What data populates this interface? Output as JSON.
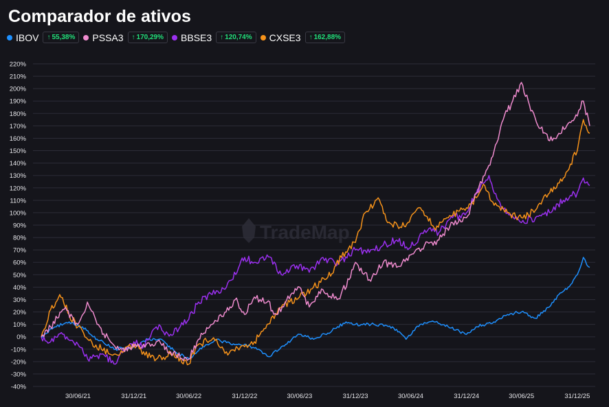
{
  "title": "Comparador de ativos",
  "legend": [
    {
      "name": "IBOV",
      "color": "#1e90ff",
      "change": "55,38%"
    },
    {
      "name": "PSSA3",
      "color": "#f08ccf",
      "change": "170,29%"
    },
    {
      "name": "BBSE3",
      "color": "#9b30f0",
      "change": "120,74%"
    },
    {
      "name": "CXSE3",
      "color": "#f7931a",
      "change": "162,88%"
    }
  ],
  "watermark": "TradeMap",
  "chart_data": {
    "type": "line",
    "title": "Comparador de ativos",
    "ylim": [
      -40,
      220
    ],
    "yticks": [
      "220%",
      "210%",
      "200%",
      "190%",
      "180%",
      "170%",
      "160%",
      "150%",
      "140%",
      "130%",
      "120%",
      "110%",
      "100%",
      "90%",
      "80%",
      "70%",
      "60%",
      "50%",
      "40%",
      "30%",
      "20%",
      "10%",
      "0%",
      "-10%",
      "-20%",
      "-30%",
      "-40%"
    ],
    "xticks": [
      "30/06/21",
      "31/12/21",
      "30/06/22",
      "31/12/22",
      "30/06/23",
      "31/12/23",
      "30/06/24",
      "31/12/24",
      "30/06/25",
      "31/12/25"
    ],
    "x_range": [
      "2021-03-01",
      "2026-02-10"
    ],
    "grid": true,
    "series": [
      {
        "name": "IBOV",
        "color": "#1e90ff",
        "points": [
          [
            "2021-03-01",
            0
          ],
          [
            "2021-04-15",
            8
          ],
          [
            "2021-06-01",
            12
          ],
          [
            "2021-07-15",
            8
          ],
          [
            "2021-09-01",
            -2
          ],
          [
            "2021-11-01",
            -10
          ],
          [
            "2021-12-31",
            -8
          ],
          [
            "2022-02-15",
            -2
          ],
          [
            "2022-04-01",
            -2
          ],
          [
            "2022-05-15",
            -12
          ],
          [
            "2022-07-01",
            -18
          ],
          [
            "2022-08-15",
            -8
          ],
          [
            "2022-10-01",
            -2
          ],
          [
            "2022-11-15",
            -6
          ],
          [
            "2022-12-31",
            -6
          ],
          [
            "2023-02-15",
            -10
          ],
          [
            "2023-03-20",
            -16
          ],
          [
            "2023-05-01",
            -8
          ],
          [
            "2023-06-30",
            2
          ],
          [
            "2023-08-15",
            -2
          ],
          [
            "2023-10-15",
            5
          ],
          [
            "2023-11-30",
            12
          ],
          [
            "2023-12-31",
            10
          ],
          [
            "2024-03-01",
            10
          ],
          [
            "2024-05-01",
            8
          ],
          [
            "2024-06-15",
            -2
          ],
          [
            "2024-07-31",
            10
          ],
          [
            "2024-09-15",
            12
          ],
          [
            "2024-11-01",
            8
          ],
          [
            "2024-12-31",
            2
          ],
          [
            "2025-01-31",
            8
          ],
          [
            "2025-03-31",
            12
          ],
          [
            "2025-05-15",
            18
          ],
          [
            "2025-06-30",
            20
          ],
          [
            "2025-08-15",
            15
          ],
          [
            "2025-09-30",
            24
          ],
          [
            "2025-10-31",
            34
          ],
          [
            "2025-12-01",
            40
          ],
          [
            "2025-12-31",
            50
          ],
          [
            "2026-01-20",
            64
          ],
          [
            "2026-01-31",
            58
          ],
          [
            "2026-02-10",
            56
          ]
        ]
      },
      {
        "name": "PSSA3",
        "color": "#f08ccf",
        "points": [
          [
            "2021-03-01",
            0
          ],
          [
            "2021-04-01",
            8
          ],
          [
            "2021-05-15",
            22
          ],
          [
            "2021-06-30",
            10
          ],
          [
            "2021-07-31",
            28
          ],
          [
            "2021-09-01",
            10
          ],
          [
            "2021-10-15",
            -4
          ],
          [
            "2021-12-01",
            -12
          ],
          [
            "2021-12-31",
            -8
          ],
          [
            "2022-02-01",
            -6
          ],
          [
            "2022-03-15",
            -4
          ],
          [
            "2022-05-01",
            -12
          ],
          [
            "2022-06-30",
            -18
          ],
          [
            "2022-08-01",
            -2
          ],
          [
            "2022-09-15",
            10
          ],
          [
            "2022-10-31",
            20
          ],
          [
            "2022-11-30",
            30
          ],
          [
            "2022-12-31",
            18
          ],
          [
            "2023-02-01",
            32
          ],
          [
            "2023-03-15",
            28
          ],
          [
            "2023-04-15",
            18
          ],
          [
            "2023-06-01",
            34
          ],
          [
            "2023-06-30",
            40
          ],
          [
            "2023-08-01",
            24
          ],
          [
            "2023-09-15",
            38
          ],
          [
            "2023-11-01",
            30
          ],
          [
            "2023-12-15",
            48
          ],
          [
            "2023-12-31",
            60
          ],
          [
            "2024-02-15",
            46
          ],
          [
            "2024-04-01",
            60
          ],
          [
            "2024-05-15",
            56
          ],
          [
            "2024-06-30",
            66
          ],
          [
            "2024-08-15",
            74
          ],
          [
            "2024-10-01",
            78
          ],
          [
            "2024-11-15",
            92
          ],
          [
            "2024-12-31",
            96
          ],
          [
            "2025-02-01",
            116
          ],
          [
            "2025-03-01",
            130
          ],
          [
            "2025-04-01",
            150
          ],
          [
            "2025-05-01",
            175
          ],
          [
            "2025-06-01",
            190
          ],
          [
            "2025-06-30",
            205
          ],
          [
            "2025-07-31",
            182
          ],
          [
            "2025-09-01",
            168
          ],
          [
            "2025-10-01",
            158
          ],
          [
            "2025-10-31",
            164
          ],
          [
            "2025-12-01",
            172
          ],
          [
            "2025-12-31",
            178
          ],
          [
            "2026-01-20",
            190
          ],
          [
            "2026-02-10",
            170
          ]
        ]
      },
      {
        "name": "BBSE3",
        "color": "#9b30f0",
        "points": [
          [
            "2021-03-01",
            0
          ],
          [
            "2021-04-01",
            -4
          ],
          [
            "2021-05-15",
            2
          ],
          [
            "2021-06-30",
            -6
          ],
          [
            "2021-08-01",
            -18
          ],
          [
            "2021-09-15",
            -14
          ],
          [
            "2021-10-31",
            -22
          ],
          [
            "2021-12-01",
            -10
          ],
          [
            "2021-12-31",
            -4
          ],
          [
            "2022-02-01",
            -8
          ],
          [
            "2022-03-15",
            8
          ],
          [
            "2022-05-01",
            2
          ],
          [
            "2022-06-30",
            14
          ],
          [
            "2022-08-01",
            28
          ],
          [
            "2022-09-15",
            34
          ],
          [
            "2022-11-01",
            40
          ],
          [
            "2022-12-15",
            58
          ],
          [
            "2022-12-31",
            64
          ],
          [
            "2023-02-01",
            60
          ],
          [
            "2023-03-15",
            66
          ],
          [
            "2023-05-01",
            50
          ],
          [
            "2023-06-30",
            58
          ],
          [
            "2023-08-01",
            52
          ],
          [
            "2023-09-15",
            64
          ],
          [
            "2023-11-01",
            58
          ],
          [
            "2023-12-31",
            70
          ],
          [
            "2024-02-15",
            68
          ],
          [
            "2024-04-01",
            74
          ],
          [
            "2024-05-15",
            78
          ],
          [
            "2024-06-30",
            72
          ],
          [
            "2024-08-15",
            86
          ],
          [
            "2024-10-01",
            84
          ],
          [
            "2024-11-15",
            96
          ],
          [
            "2024-12-31",
            100
          ],
          [
            "2025-02-01",
            115
          ],
          [
            "2025-03-15",
            130
          ],
          [
            "2025-04-15",
            110
          ],
          [
            "2025-05-15",
            100
          ],
          [
            "2025-06-30",
            92
          ],
          [
            "2025-08-15",
            96
          ],
          [
            "2025-10-01",
            100
          ],
          [
            "2025-11-15",
            110
          ],
          [
            "2025-12-31",
            116
          ],
          [
            "2026-01-20",
            128
          ],
          [
            "2026-02-10",
            122
          ]
        ]
      },
      {
        "name": "CXSE3",
        "color": "#f7931a",
        "points": [
          [
            "2021-03-01",
            0
          ],
          [
            "2021-04-01",
            22
          ],
          [
            "2021-05-01",
            34
          ],
          [
            "2021-06-01",
            18
          ],
          [
            "2021-06-30",
            8
          ],
          [
            "2021-08-01",
            -2
          ],
          [
            "2021-09-15",
            -10
          ],
          [
            "2021-11-01",
            -14
          ],
          [
            "2021-12-31",
            -6
          ],
          [
            "2022-02-01",
            -12
          ],
          [
            "2022-03-15",
            -18
          ],
          [
            "2022-05-01",
            -14
          ],
          [
            "2022-06-30",
            -22
          ],
          [
            "2022-08-01",
            -6
          ],
          [
            "2022-09-15",
            -2
          ],
          [
            "2022-11-01",
            -12
          ],
          [
            "2022-12-31",
            -8
          ],
          [
            "2023-02-01",
            -4
          ],
          [
            "2023-03-15",
            10
          ],
          [
            "2023-05-01",
            24
          ],
          [
            "2023-06-30",
            32
          ],
          [
            "2023-08-15",
            40
          ],
          [
            "2023-10-01",
            48
          ],
          [
            "2023-11-15",
            64
          ],
          [
            "2023-12-31",
            76
          ],
          [
            "2024-02-01",
            100
          ],
          [
            "2024-03-15",
            112
          ],
          [
            "2024-04-15",
            92
          ],
          [
            "2024-05-31",
            88
          ],
          [
            "2024-06-30",
            96
          ],
          [
            "2024-08-01",
            104
          ],
          [
            "2024-09-15",
            88
          ],
          [
            "2024-11-01",
            96
          ],
          [
            "2024-12-31",
            104
          ],
          [
            "2025-02-01",
            112
          ],
          [
            "2025-03-01",
            122
          ],
          [
            "2025-04-01",
            106
          ],
          [
            "2025-05-15",
            100
          ],
          [
            "2025-06-30",
            96
          ],
          [
            "2025-08-15",
            102
          ],
          [
            "2025-10-01",
            116
          ],
          [
            "2025-11-15",
            128
          ],
          [
            "2025-12-31",
            150
          ],
          [
            "2026-01-20",
            175
          ],
          [
            "2026-02-10",
            164
          ]
        ]
      }
    ]
  }
}
